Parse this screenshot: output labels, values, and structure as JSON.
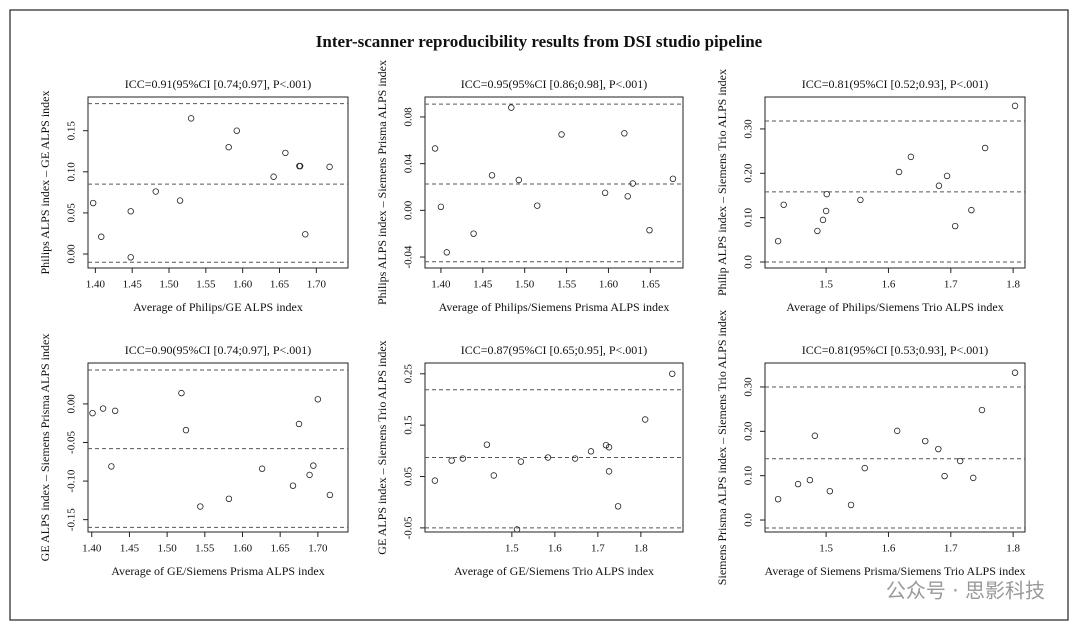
{
  "title": "Inter-scanner reproducibility results from DSI studio pipeline",
  "watermark": "公众号 · 思影科技",
  "chart_data": [
    {
      "type": "scatter",
      "title": "ICC=0.91(95%CI [0.74;0.97], P<.001)",
      "x_label": "Average of Philips/GE ALPS index",
      "y_label": "Philips ALPS index – GE ALPS index",
      "x": [
        1.397,
        1.408,
        1.448,
        1.448,
        1.482,
        1.515,
        1.53,
        1.581,
        1.592,
        1.642,
        1.658,
        1.677,
        1.678,
        1.685,
        1.718
      ],
      "y": [
        0.062,
        0.021,
        0.052,
        -0.004,
        0.076,
        0.065,
        0.165,
        0.13,
        0.15,
        0.094,
        0.123,
        0.107,
        0.107,
        0.024,
        0.106
      ],
      "hlines": [
        0.085,
        0.183,
        -0.01
      ],
      "xlim": [
        1.39,
        1.743
      ],
      "ylim": [
        -0.017,
        0.191
      ],
      "xticks": [
        {
          "value": 1.4,
          "label": "1.40"
        },
        1.45,
        {
          "value": 1.5,
          "label": "1.50"
        },
        1.55,
        {
          "value": 1.6,
          "label": "1.60"
        },
        1.65,
        {
          "value": 1.7,
          "label": "1.70"
        }
      ],
      "yticks": [
        {
          "value": 0,
          "label": "0.00"
        },
        0.05,
        {
          "value": 0.1,
          "label": "0.10"
        },
        0.15
      ]
    },
    {
      "type": "scatter",
      "title": "ICC=0.95(95%CI [0.86;0.98], P<.001)",
      "x_label": "Average of Philips/Siemens Prisma ALPS index",
      "y_label": "Philips ALPS index – Siemens Prisma ALPS index",
      "x": [
        1.393,
        1.4,
        1.407,
        1.439,
        1.461,
        1.484,
        1.493,
        1.515,
        1.544,
        1.596,
        1.619,
        1.623,
        1.629,
        1.649,
        1.677
      ],
      "y": [
        0.053,
        0.003,
        -0.036,
        -0.02,
        0.03,
        0.088,
        0.026,
        0.004,
        0.065,
        0.015,
        0.066,
        0.012,
        0.023,
        -0.017,
        0.027
      ],
      "hlines": [
        0.0226,
        0.091,
        -0.044
      ],
      "xlim": [
        1.381,
        1.689
      ],
      "ylim": [
        -0.0494,
        0.0971
      ],
      "xticks": [
        {
          "value": 1.4,
          "label": "1.40"
        },
        1.45,
        {
          "value": 1.5,
          "label": "1.50"
        },
        1.55,
        {
          "value": 1.6,
          "label": "1.60"
        },
        1.65
      ],
      "yticks": [
        -0.04,
        {
          "value": 0,
          "label": "0.00"
        },
        0.04,
        0.08
      ]
    },
    {
      "type": "scatter",
      "title": "ICC=0.81(95%CI [0.52;0.93], P<.001)",
      "x_label": "Average of Philips/Siemens Trio ALPS index",
      "y_label": "Philip ALPS index – Siemens Trio ALPS index",
      "x": [
        1.423,
        1.432,
        1.486,
        1.495,
        1.5,
        1.501,
        1.555,
        1.617,
        1.636,
        1.681,
        1.694,
        1.707,
        1.733,
        1.755,
        1.803
      ],
      "y": [
        0.047,
        0.129,
        0.07,
        0.095,
        0.115,
        0.153,
        0.14,
        0.203,
        0.237,
        0.172,
        0.194,
        0.081,
        0.117,
        0.257,
        0.352
      ],
      "hlines": [
        0.158,
        0.318,
        0
      ],
      "xlim": [
        1.402,
        1.819
      ],
      "ylim": [
        -0.0135,
        0.372
      ],
      "xticks": [
        1.5,
        1.6,
        1.7,
        1.8
      ],
      "yticks": [
        {
          "value": 0,
          "label": "0.0"
        },
        {
          "value": 0.1,
          "label": "0.10"
        },
        {
          "value": 0.2,
          "label": "0.20"
        },
        {
          "value": 0.3,
          "label": "0.30"
        }
      ]
    },
    {
      "type": "scatter",
      "title": "ICC=0.90(95%CI [0.74;0.97], P<.001)",
      "x_label": "Average of GE/Siemens Prisma ALPS index",
      "y_label": "GE ALPS index – Siemens Prisma ALPS index",
      "x": [
        1.401,
        1.415,
        1.426,
        1.431,
        1.519,
        1.525,
        1.544,
        1.582,
        1.626,
        1.667,
        1.675,
        1.689,
        1.694,
        1.7,
        1.716
      ],
      "y": [
        -0.012,
        -0.006,
        -0.081,
        -0.009,
        0.014,
        -0.034,
        -0.133,
        -0.123,
        -0.084,
        -0.106,
        -0.026,
        -0.092,
        -0.08,
        0.006,
        -0.118
      ],
      "hlines": [
        -0.058,
        0.044,
        -0.16
      ],
      "xlim": [
        1.395,
        1.74
      ],
      "ylim": [
        -0.166,
        0.053
      ],
      "xticks": [
        {
          "value": 1.4,
          "label": "1.40"
        },
        1.45,
        {
          "value": 1.5,
          "label": "1.50"
        },
        1.55,
        {
          "value": 1.6,
          "label": "1.60"
        },
        1.65,
        {
          "value": 1.7,
          "label": "1.70"
        }
      ],
      "yticks": [
        -0.15,
        {
          "value": -0.1,
          "label": "-0.10"
        },
        -0.05,
        {
          "value": 0,
          "label": "0.00"
        }
      ]
    },
    {
      "type": "scatter",
      "title": "ICC=0.87(95%CI [0.65;0.95], P<.001)",
      "x_label": "Average of GE/Siemens Trio ALPS index",
      "y_label": "GE ALPS index – Siemens Trio ALPS index",
      "x": [
        1.321,
        1.36,
        1.386,
        1.442,
        1.458,
        1.521,
        1.512,
        1.584,
        1.647,
        1.684,
        1.719,
        1.726,
        1.726,
        1.747,
        1.81,
        1.873
      ],
      "y": [
        0.042,
        0.081,
        0.085,
        0.112,
        0.052,
        0.079,
        -0.053,
        0.087,
        0.085,
        0.099,
        0.111,
        0.107,
        0.06,
        -0.008,
        0.161,
        0.25
      ],
      "hlines": [
        0.087,
        0.219,
        -0.05
      ],
      "xlim": [
        1.298,
        1.898
      ],
      "ylim": [
        -0.058,
        0.271
      ],
      "xticks": [
        1.5,
        1.6,
        1.7,
        1.8
      ],
      "yticks": [
        -0.05,
        0.05,
        0.15,
        0.25
      ]
    },
    {
      "type": "scatter",
      "title": "ICC=0.81(95%CI [0.53;0.93], P<.001)",
      "x_label": "Average of Siemens Prisma/Siemens Trio ALPS index",
      "y_label": "Siemens Prisma ALPS index – Siemens Trio ALPS index",
      "x": [
        1.423,
        1.455,
        1.474,
        1.482,
        1.506,
        1.54,
        1.562,
        1.614,
        1.659,
        1.68,
        1.69,
        1.715,
        1.736,
        1.75,
        1.803
      ],
      "y": [
        0.047,
        0.081,
        0.09,
        0.19,
        0.065,
        0.034,
        0.117,
        0.201,
        0.178,
        0.16,
        0.099,
        0.133,
        0.095,
        0.248,
        0.332
      ],
      "hlines": [
        0.138,
        0.3,
        -0.018
      ],
      "xlim": [
        1.402,
        1.819
      ],
      "ylim": [
        -0.027,
        0.354
      ],
      "xticks": [
        1.5,
        1.6,
        1.7,
        1.8
      ],
      "yticks": [
        {
          "value": 0,
          "label": "0.0"
        },
        {
          "value": 0.1,
          "label": "0.10"
        },
        {
          "value": 0.2,
          "label": "0.20"
        },
        {
          "value": 0.3,
          "label": "0.30"
        }
      ]
    }
  ]
}
